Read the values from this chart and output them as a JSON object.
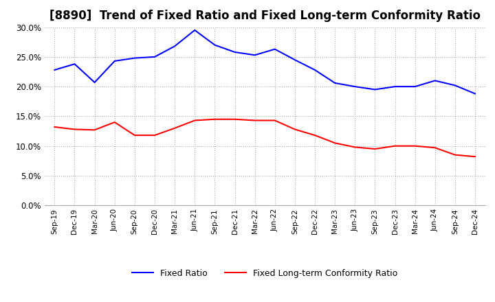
{
  "title": "[8890]  Trend of Fixed Ratio and Fixed Long-term Conformity Ratio",
  "x_labels": [
    "Sep-19",
    "Dec-19",
    "Mar-20",
    "Jun-20",
    "Sep-20",
    "Dec-20",
    "Mar-21",
    "Jun-21",
    "Sep-21",
    "Dec-21",
    "Mar-22",
    "Jun-22",
    "Sep-22",
    "Dec-22",
    "Mar-23",
    "Jun-23",
    "Sep-23",
    "Dec-23",
    "Mar-24",
    "Jun-24",
    "Sep-24",
    "Dec-24"
  ],
  "fixed_ratio": [
    0.228,
    0.238,
    0.207,
    0.243,
    0.248,
    0.25,
    0.268,
    0.295,
    0.27,
    0.258,
    0.253,
    0.263,
    0.245,
    0.228,
    0.206,
    0.2,
    0.195,
    0.2,
    0.2,
    0.21,
    0.202,
    0.188
  ],
  "fixed_lt_ratio": [
    0.132,
    0.128,
    0.127,
    0.14,
    0.118,
    0.118,
    0.13,
    0.143,
    0.145,
    0.145,
    0.143,
    0.143,
    0.128,
    0.118,
    0.105,
    0.098,
    0.095,
    0.1,
    0.1,
    0.097,
    0.085,
    0.082
  ],
  "fixed_ratio_color": "#0000ff",
  "fixed_lt_ratio_color": "#ff0000",
  "ylim": [
    0.0,
    0.3
  ],
  "yticks": [
    0.0,
    0.05,
    0.1,
    0.15,
    0.2,
    0.25,
    0.3
  ],
  "grid_color": "#aaaaaa",
  "background_color": "#ffffff",
  "title_fontsize": 12,
  "legend_fixed": "Fixed Ratio",
  "legend_fixed_lt": "Fixed Long-term Conformity Ratio"
}
